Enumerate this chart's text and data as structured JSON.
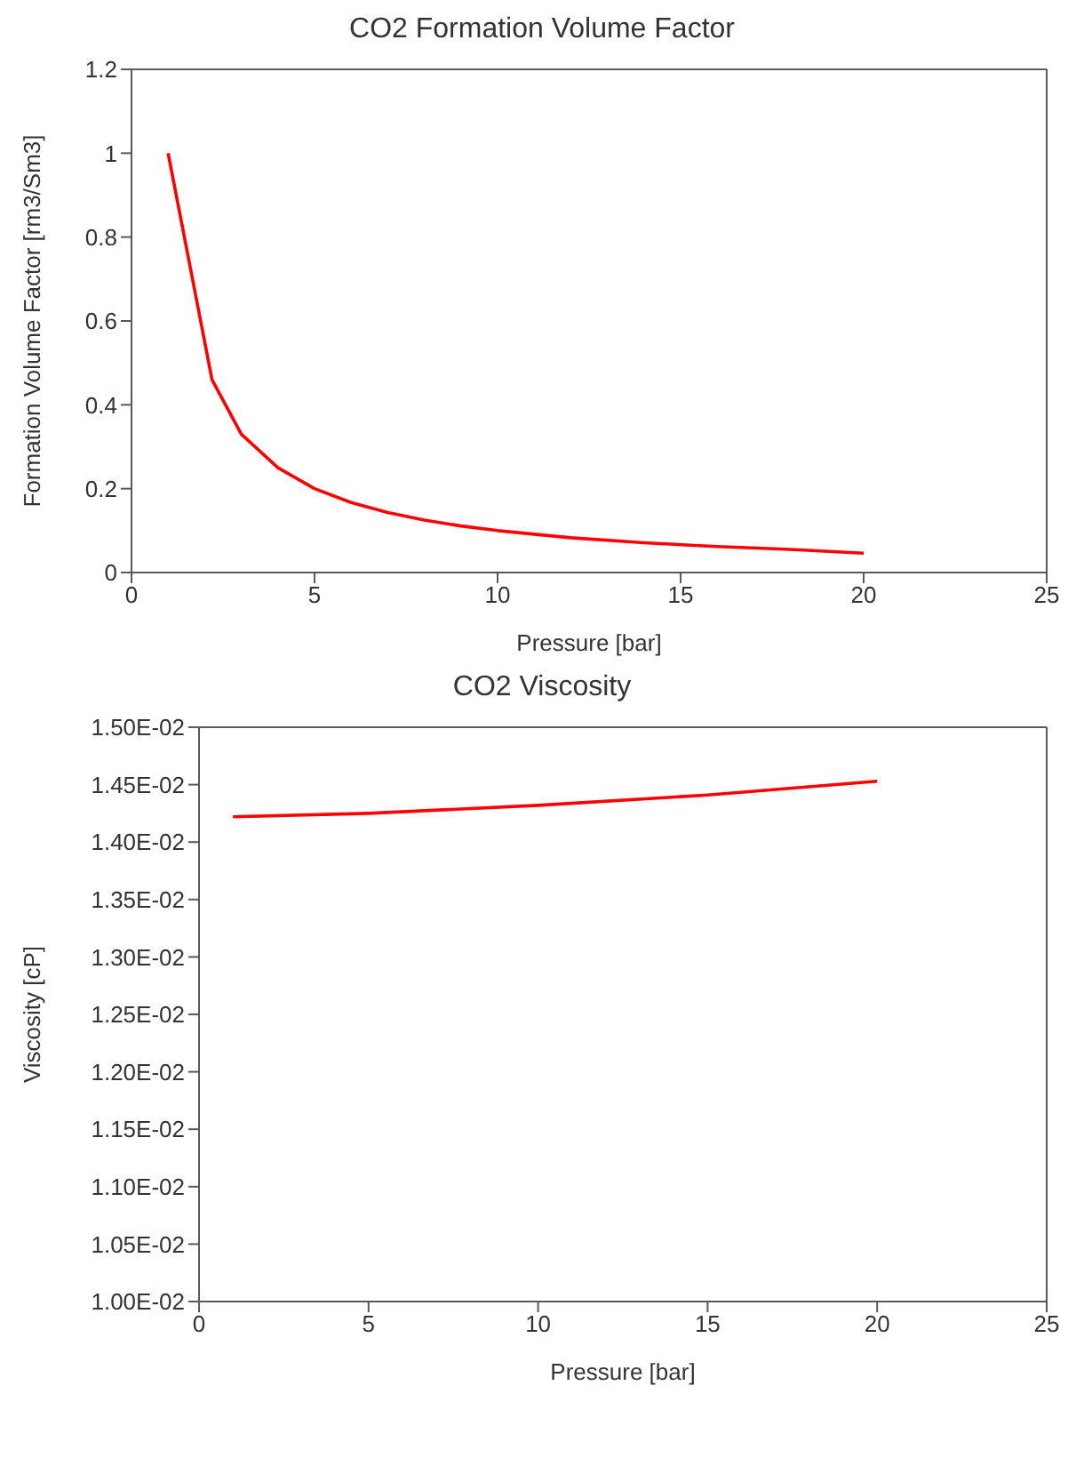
{
  "chart_data": [
    {
      "type": "line",
      "title": "CO2 Formation Volume Factor",
      "xlabel": "Pressure [bar]",
      "ylabel": "Formation Volume Factor [rm3/Sm3]",
      "marker": "none",
      "grid": false,
      "legend": false,
      "series": [
        {
          "color": "#ff0000",
          "x": [
            1,
            2.2,
            3,
            4,
            5,
            6,
            7,
            8,
            9,
            10,
            12,
            14,
            16,
            18,
            20
          ],
          "values": [
            1,
            0.46,
            0.33,
            0.25,
            0.2,
            0.167,
            0.143,
            0.125,
            0.111,
            0.1,
            0.083,
            0.071,
            0.062,
            0.055,
            0.046
          ]
        }
      ],
      "xlim": [
        0,
        25
      ],
      "xticks": [
        0,
        5,
        10,
        15,
        20,
        25
      ],
      "ylim": [
        0,
        1.2
      ],
      "yticks": [
        0,
        0.2,
        0.4,
        0.6,
        0.8,
        1,
        1.2
      ]
    },
    {
      "type": "line",
      "title": "CO2 Viscosity",
      "xlabel": "Pressure [bar]",
      "ylabel": "Viscosity [cP]",
      "marker": "none",
      "grid": false,
      "legend": false,
      "series": [
        {
          "color": "#ff0000",
          "x": [
            1,
            5,
            10,
            15,
            20
          ],
          "values": [
            0.01422,
            0.01425,
            0.01432,
            0.01441,
            0.01453
          ]
        }
      ],
      "xlim": [
        0,
        25
      ],
      "xticks": [
        0,
        5,
        10,
        15,
        20,
        25
      ],
      "ylim": [
        0.01,
        0.015
      ],
      "yticks": [
        {
          "value": 0.01,
          "label": "1.00E-02"
        },
        {
          "value": 0.0105,
          "label": "1.05E-02"
        },
        {
          "value": 0.011,
          "label": "1.10E-02"
        },
        {
          "value": 0.0115,
          "label": "1.15E-02"
        },
        {
          "value": 0.012,
          "label": "1.20E-02"
        },
        {
          "value": 0.0125,
          "label": "1.25E-02"
        },
        {
          "value": 0.013,
          "label": "1.30E-02"
        },
        {
          "value": 0.0135,
          "label": "1.35E-02"
        },
        {
          "value": 0.014,
          "label": "1.40E-02"
        },
        {
          "value": 0.0145,
          "label": "1.45E-02"
        },
        {
          "value": 0.015,
          "label": "1.50E-02"
        }
      ]
    }
  ]
}
